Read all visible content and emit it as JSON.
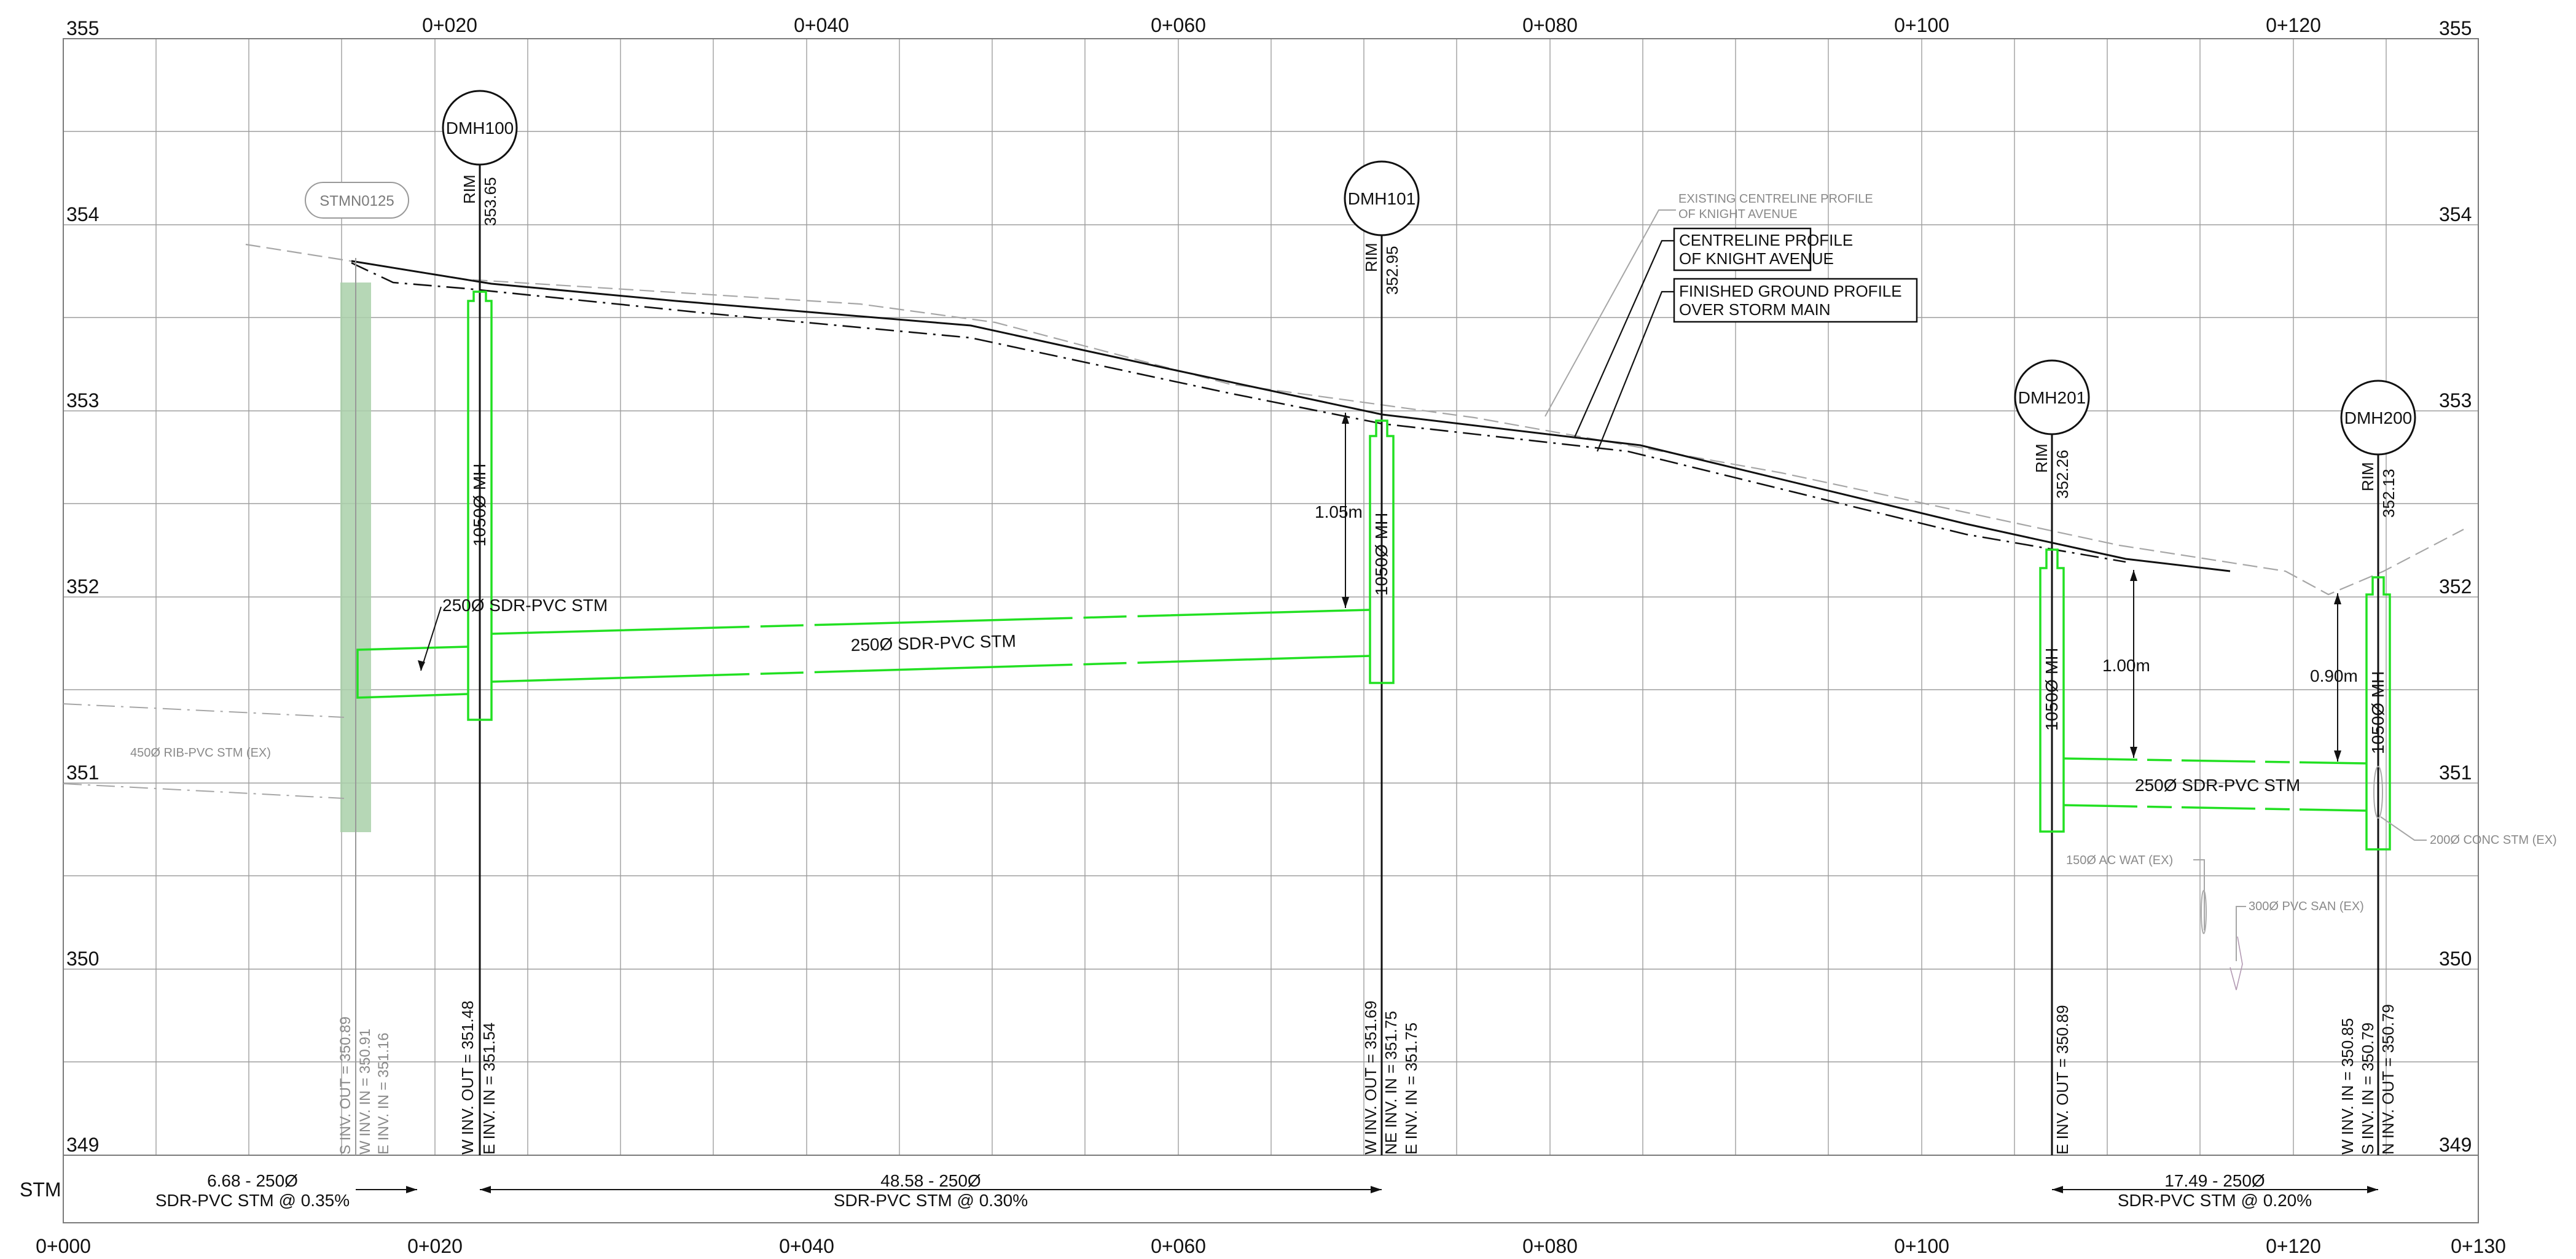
{
  "drawing": {
    "stationing": {
      "top": [
        "0+020",
        "0+040",
        "0+060",
        "0+080",
        "0+100",
        "0+120"
      ],
      "bottom": [
        "0+000",
        "0+020",
        "0+040",
        "0+060",
        "0+080",
        "0+100",
        "0+120",
        "0+130"
      ]
    },
    "elevations": [
      "355",
      "354",
      "353",
      "352",
      "351",
      "350",
      "349"
    ],
    "stm_row_label": "STM",
    "manholes": [
      {
        "id": "DMH100",
        "rim_label": "RIM",
        "rim_value": "353.65",
        "size_label": "1050Ø MH",
        "inverts": [
          "W INV. OUT = 351.48",
          "E INV. IN = 351.54"
        ]
      },
      {
        "id": "DMH101",
        "rim_label": "RIM",
        "rim_value": "352.95",
        "size_label": "1050Ø MH",
        "inverts": [
          "W INV. OUT = 351.69",
          "NE INV. IN = 351.75",
          "E INV. IN = 351.75"
        ]
      },
      {
        "id": "DMH201",
        "rim_label": "RIM",
        "rim_value": "352.26",
        "size_label": "1050Ø MH",
        "inverts": [
          "E INV. OUT = 350.89"
        ]
      },
      {
        "id": "DMH200",
        "rim_label": "RIM",
        "rim_value": "352.13",
        "size_label": "1050Ø MH",
        "inverts": [
          "W INV. IN = 350.85",
          "S INV. IN = 350.79",
          "N INV. OUT = 350.79"
        ]
      }
    ],
    "existing_structure": {
      "id": "STMN0125",
      "inverts": [
        "S INV. OUT = 350.89",
        "W INV. IN = 350.91",
        "E INV. IN = 351.16"
      ]
    },
    "pipe_labels": [
      "250Ø SDR-PVC STM",
      "250Ø SDR-PVC STM",
      "250Ø SDR-PVC STM"
    ],
    "cover_dims": [
      "1.05m",
      "1.00m",
      "0.90m"
    ],
    "notes": {
      "existing_centreline_1": "EXISTING CENTRELINE PROFILE",
      "existing_centreline_2": "OF KNIGHT AVENUE",
      "centreline_1": "CENTRELINE PROFILE",
      "centreline_2": "OF KNIGHT AVENUE",
      "finished_ground_1": "FINISHED GROUND PROFILE",
      "finished_ground_2": "OVER STORM MAIN",
      "existing_rib": "450Ø RIB-PVC STM (EX)",
      "conc_stm": "200Ø CONC STM (EX)",
      "ac_wat": "150Ø AC WAT (EX)",
      "pvc_san": "300Ø PVC SAN (EX)"
    },
    "segments": [
      {
        "line1": "6.68 - 250Ø",
        "line2": "SDR-PVC STM @ 0.35%"
      },
      {
        "line1": "48.58 - 250Ø",
        "line2": "SDR-PVC STM @ 0.30%"
      },
      {
        "line1": "17.49 - 250Ø",
        "line2": "SDR-PVC STM @ 0.20%"
      }
    ],
    "colors": {
      "proposed": "#22e022",
      "existing": "#9e9e9e",
      "existing_mh_fill": "#a9d0a9",
      "ink": "#111111"
    }
  }
}
